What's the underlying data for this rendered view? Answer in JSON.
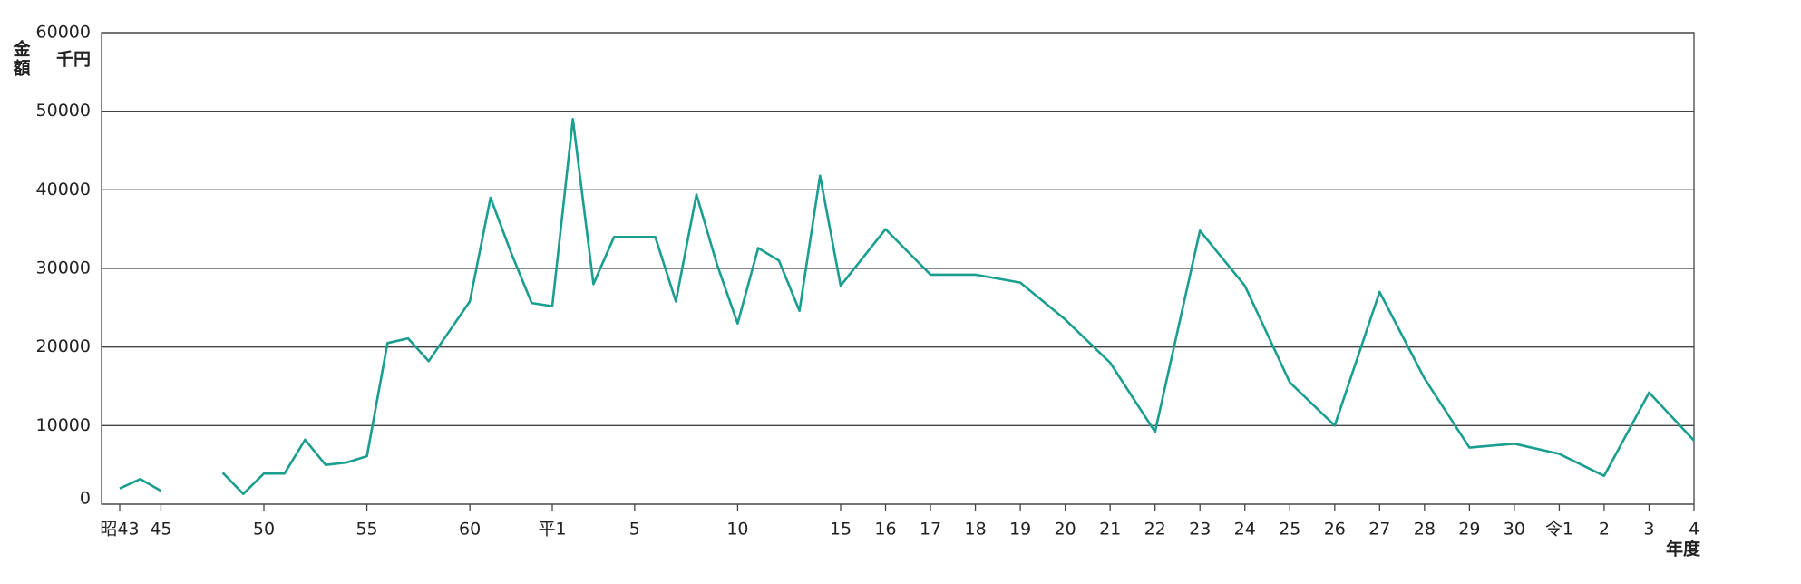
{
  "chart_data": {
    "type": "line",
    "y_label": "金額",
    "y_unit": "千円",
    "x_label": "年度",
    "categories": [
      "昭43",
      null,
      "45",
      null,
      null,
      null,
      null,
      "50",
      null,
      null,
      null,
      null,
      "55",
      null,
      null,
      null,
      null,
      "60",
      null,
      null,
      null,
      "平1",
      null,
      null,
      null,
      "5",
      null,
      null,
      null,
      null,
      "10",
      null,
      null,
      null,
      null,
      "15",
      "16",
      "17",
      "18",
      "19",
      "20",
      "21",
      "22",
      "23",
      "24",
      "25",
      "26",
      "27",
      "28",
      "29",
      "30",
      "令1",
      "2",
      "3",
      "4"
    ],
    "series": [
      {
        "color": "#1a9e8f",
        "values": [
          2000,
          3200,
          1700,
          null,
          null,
          4000,
          1300,
          3900,
          3900,
          8200,
          5000,
          5300,
          6100,
          20500,
          21100,
          18200,
          22000,
          25800,
          39000,
          32000,
          25600,
          25200,
          49000,
          28000,
          34000,
          34000,
          34000,
          25800,
          39400,
          30500,
          23000,
          32600,
          31000,
          24600,
          41800,
          27800,
          35000,
          29200,
          29200,
          28200,
          23500,
          18000,
          9200,
          34800,
          27800,
          15500,
          10000,
          27000,
          16000,
          7200,
          7700,
          6400,
          3600,
          14200,
          8100
        ]
      }
    ],
    "ylim": [
      0,
      60000
    ],
    "yticks": [
      0,
      10000,
      20000,
      30000,
      40000,
      50000,
      60000
    ],
    "grid": true
  }
}
